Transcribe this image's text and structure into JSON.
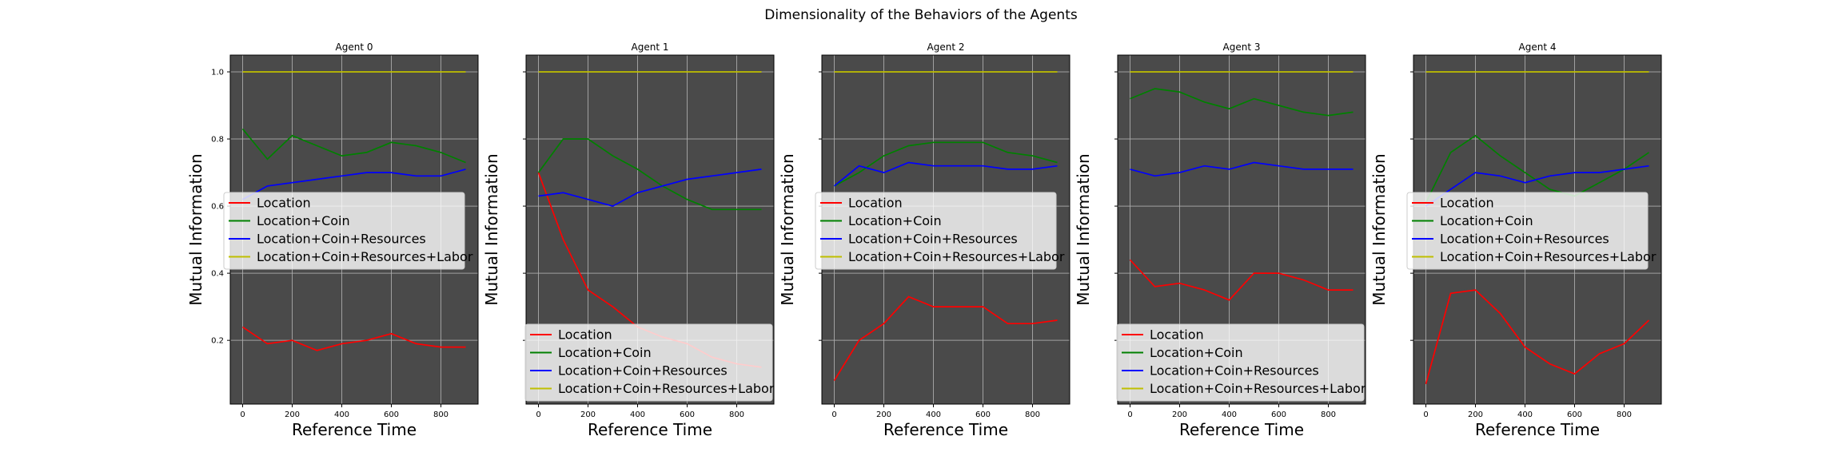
{
  "figure": {
    "title": "Dimensionality of the Behaviors of the Agents"
  },
  "chart_data": [
    {
      "type": "line",
      "title": "Agent 0",
      "xlabel": "Reference Time",
      "ylabel": "Mutual Information",
      "xlim": [
        -50,
        950
      ],
      "ylim": [
        0.01,
        1.05
      ],
      "xticks": [
        0,
        200,
        400,
        600,
        800
      ],
      "yticks": [
        0.2,
        0.4,
        0.6,
        0.8,
        1.0
      ],
      "ytick_labels": [
        "0.2",
        "0.4",
        "0.6",
        "0.8",
        "1.0"
      ],
      "show_ytick_labels": true,
      "grid": true,
      "legend_position": "center",
      "x": [
        0,
        100,
        200,
        300,
        400,
        500,
        600,
        700,
        800,
        900
      ],
      "series": [
        {
          "name": "Location",
          "color": "#ff0000",
          "values": [
            0.24,
            0.19,
            0.2,
            0.17,
            0.19,
            0.2,
            0.22,
            0.19,
            0.18,
            0.18
          ]
        },
        {
          "name": "Location+Coin",
          "color": "#008000",
          "values": [
            0.83,
            0.74,
            0.81,
            0.78,
            0.75,
            0.76,
            0.79,
            0.78,
            0.76,
            0.73
          ]
        },
        {
          "name": "Location+Coin+Resources",
          "color": "#0000ff",
          "values": [
            0.62,
            0.66,
            0.67,
            0.68,
            0.69,
            0.7,
            0.7,
            0.69,
            0.69,
            0.71
          ]
        },
        {
          "name": "Location+Coin+Resources+Labor",
          "color": "#bfbf00",
          "values": [
            1.0,
            1.0,
            1.0,
            1.0,
            1.0,
            1.0,
            1.0,
            1.0,
            1.0,
            1.0
          ]
        }
      ]
    },
    {
      "type": "line",
      "title": "Agent 1",
      "xlabel": "Reference Time",
      "ylabel": "Mutual Information",
      "xlim": [
        -50,
        950
      ],
      "ylim": [
        0.01,
        1.05
      ],
      "xticks": [
        0,
        200,
        400,
        600,
        800
      ],
      "yticks": [
        0.2,
        0.4,
        0.6,
        0.8,
        1.0
      ],
      "ytick_labels": [
        "0.2",
        "0.4",
        "0.6",
        "0.8",
        "1.0"
      ],
      "show_ytick_labels": false,
      "grid": true,
      "legend_position": "lower right",
      "x": [
        0,
        100,
        200,
        300,
        400,
        500,
        600,
        700,
        800,
        900
      ],
      "series": [
        {
          "name": "Location",
          "color": "#ff0000",
          "values": [
            0.7,
            0.5,
            0.35,
            0.3,
            0.24,
            0.21,
            0.19,
            0.15,
            0.13,
            0.12
          ]
        },
        {
          "name": "Location+Coin",
          "color": "#008000",
          "values": [
            0.7,
            0.8,
            0.8,
            0.75,
            0.71,
            0.66,
            0.62,
            0.59,
            0.59,
            0.59
          ]
        },
        {
          "name": "Location+Coin+Resources",
          "color": "#0000ff",
          "values": [
            0.63,
            0.64,
            0.62,
            0.6,
            0.64,
            0.66,
            0.68,
            0.69,
            0.7,
            0.71
          ]
        },
        {
          "name": "Location+Coin+Resources+Labor",
          "color": "#bfbf00",
          "values": [
            1.0,
            1.0,
            1.0,
            1.0,
            1.0,
            1.0,
            1.0,
            1.0,
            1.0,
            1.0
          ]
        }
      ]
    },
    {
      "type": "line",
      "title": "Agent 2",
      "xlabel": "Reference Time",
      "ylabel": "Mutual Information",
      "xlim": [
        -50,
        950
      ],
      "ylim": [
        0.01,
        1.05
      ],
      "xticks": [
        0,
        200,
        400,
        600,
        800
      ],
      "yticks": [
        0.2,
        0.4,
        0.6,
        0.8,
        1.0
      ],
      "ytick_labels": [
        "0.2",
        "0.4",
        "0.6",
        "0.8",
        "1.0"
      ],
      "show_ytick_labels": false,
      "grid": true,
      "legend_position": "center",
      "x": [
        0,
        100,
        200,
        300,
        400,
        500,
        600,
        700,
        800,
        900
      ],
      "series": [
        {
          "name": "Location",
          "color": "#ff0000",
          "values": [
            0.08,
            0.2,
            0.25,
            0.33,
            0.3,
            0.3,
            0.3,
            0.25,
            0.25,
            0.26
          ]
        },
        {
          "name": "Location+Coin",
          "color": "#008000",
          "values": [
            0.66,
            0.7,
            0.75,
            0.78,
            0.79,
            0.79,
            0.79,
            0.76,
            0.75,
            0.73
          ]
        },
        {
          "name": "Location+Coin+Resources",
          "color": "#0000ff",
          "values": [
            0.66,
            0.72,
            0.7,
            0.73,
            0.72,
            0.72,
            0.72,
            0.71,
            0.71,
            0.72
          ]
        },
        {
          "name": "Location+Coin+Resources+Labor",
          "color": "#bfbf00",
          "values": [
            1.0,
            1.0,
            1.0,
            1.0,
            1.0,
            1.0,
            1.0,
            1.0,
            1.0,
            1.0
          ]
        }
      ]
    },
    {
      "type": "line",
      "title": "Agent 3",
      "xlabel": "Reference Time",
      "ylabel": "Mutual Information",
      "xlim": [
        -50,
        950
      ],
      "ylim": [
        0.01,
        1.05
      ],
      "xticks": [
        0,
        200,
        400,
        600,
        800
      ],
      "yticks": [
        0.2,
        0.4,
        0.6,
        0.8,
        1.0
      ],
      "ytick_labels": [
        "0.2",
        "0.4",
        "0.6",
        "0.8",
        "1.0"
      ],
      "show_ytick_labels": false,
      "grid": true,
      "legend_position": "lower right",
      "x": [
        0,
        100,
        200,
        300,
        400,
        500,
        600,
        700,
        800,
        900
      ],
      "series": [
        {
          "name": "Location",
          "color": "#ff0000",
          "values": [
            0.44,
            0.36,
            0.37,
            0.35,
            0.32,
            0.4,
            0.4,
            0.38,
            0.35,
            0.35
          ]
        },
        {
          "name": "Location+Coin",
          "color": "#008000",
          "values": [
            0.92,
            0.95,
            0.94,
            0.91,
            0.89,
            0.92,
            0.9,
            0.88,
            0.87,
            0.88
          ]
        },
        {
          "name": "Location+Coin+Resources",
          "color": "#0000ff",
          "values": [
            0.71,
            0.69,
            0.7,
            0.72,
            0.71,
            0.73,
            0.72,
            0.71,
            0.71,
            0.71
          ]
        },
        {
          "name": "Location+Coin+Resources+Labor",
          "color": "#bfbf00",
          "values": [
            1.0,
            1.0,
            1.0,
            1.0,
            1.0,
            1.0,
            1.0,
            1.0,
            1.0,
            1.0
          ]
        }
      ]
    },
    {
      "type": "line",
      "title": "Agent 4",
      "xlabel": "Reference Time",
      "ylabel": "Mutual Information",
      "xlim": [
        -50,
        950
      ],
      "ylim": [
        0.01,
        1.05
      ],
      "xticks": [
        0,
        200,
        400,
        600,
        800
      ],
      "yticks": [
        0.2,
        0.4,
        0.6,
        0.8,
        1.0
      ],
      "ytick_labels": [
        "0.2",
        "0.4",
        "0.6",
        "0.8",
        "1.0"
      ],
      "show_ytick_labels": false,
      "grid": true,
      "legend_position": "center",
      "x": [
        0,
        100,
        200,
        300,
        400,
        500,
        600,
        700,
        800,
        900
      ],
      "series": [
        {
          "name": "Location",
          "color": "#ff0000",
          "values": [
            0.07,
            0.34,
            0.35,
            0.28,
            0.18,
            0.13,
            0.1,
            0.16,
            0.19,
            0.26
          ]
        },
        {
          "name": "Location+Coin",
          "color": "#008000",
          "values": [
            0.61,
            0.76,
            0.81,
            0.75,
            0.7,
            0.65,
            0.63,
            0.67,
            0.71,
            0.76
          ]
        },
        {
          "name": "Location+Coin+Resources",
          "color": "#0000ff",
          "values": [
            0.6,
            0.65,
            0.7,
            0.69,
            0.67,
            0.69,
            0.7,
            0.7,
            0.71,
            0.72
          ]
        },
        {
          "name": "Location+Coin+Resources+Labor",
          "color": "#bfbf00",
          "values": [
            1.0,
            1.0,
            1.0,
            1.0,
            1.0,
            1.0,
            1.0,
            1.0,
            1.0,
            1.0
          ]
        }
      ]
    }
  ]
}
